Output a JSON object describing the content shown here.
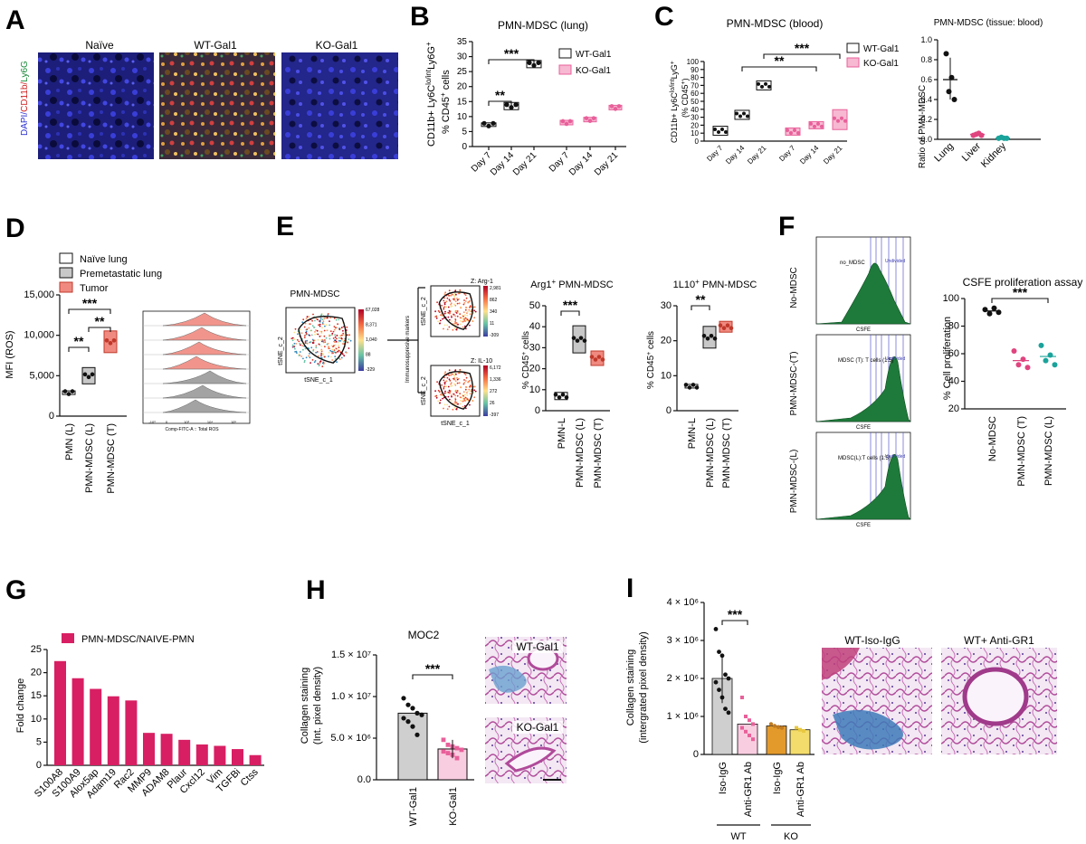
{
  "colors": {
    "wt": "#ffffff",
    "ko": "#e8609a",
    "ko_light": "#f7b8d1",
    "bar_red": "#d81f63",
    "tumor": "#f08a80",
    "premet": "#c8c8c8",
    "gold": "#e39a2b",
    "yellow": "#f3dc6b",
    "green": "#1e7a3a",
    "liver": "#e0447f",
    "kidney": "#1aa39b",
    "micro_blue": "#2a2fd0"
  },
  "panels": {
    "A": {
      "label": "A",
      "cols": [
        "Naïve",
        "WT-Gal1",
        "KO-Gal1"
      ],
      "stain_dapi": "DAPI/",
      "stain_cd11b": "CD11b/",
      "stain_ly6g": "Ly6G"
    },
    "B": {
      "label": "B",
      "title": "PMN-MDSC (lung)",
      "ylabel1": "CD11b+ Ly6C",
      "ylabel1b": "lo/int",
      "ylabel1c": "Ly6G",
      "ylabel1d": "+",
      "ylabel2": "% CD45",
      "ylabel2b": "+",
      "ylabel2c": " cells",
      "legend": [
        "WT-Gal1",
        "KO-Gal1"
      ]
    },
    "C": {
      "label": "C",
      "title": "PMN-MDSC (blood)",
      "ylabel1": "CD11b+ Ly6C",
      "ylabel1b": "lo/int",
      "ylabel1c": "LyG",
      "ylabel1d": "+",
      "ylabel2": "(% CD45",
      "ylabel2b": "+",
      "ylabel2c": ")",
      "legend": [
        "WT-Gal1",
        "KO-Gal1"
      ],
      "title2": "PMN-MDSC (tissue: blood)",
      "ylabel_ratio": "Ratio of PMN-MDSC"
    },
    "D": {
      "label": "D",
      "ylabel": "MFI (ROS)",
      "legend": [
        "Naïve lung",
        "Premetastatic lung",
        "Tumor"
      ],
      "hist_xlabel": "Comp-FITC-A :: Total ROS",
      "hist_ticks": [
        "-10³",
        "0",
        "10³",
        "10⁴",
        "10⁵"
      ]
    },
    "E": {
      "label": "E",
      "tsne_title": "PMN-MDSC",
      "tsne_x": "tSNE_c_1",
      "tsne_y": "tSNE_c_2",
      "arrow_label": "Immunosuppresive markers",
      "z_arg": "Z: Arg-1",
      "z_il": "Z: IL-10",
      "scale_main": [
        "67,028",
        "8,371",
        "1,040",
        "88",
        "-329"
      ],
      "scale_arg": [
        "2,981",
        "862",
        "340",
        "11",
        "-309"
      ],
      "scale_il": [
        "6,172",
        "1,336",
        "272",
        "26",
        "-397"
      ],
      "arg_title": "Arg1",
      "arg_title_sup": "+",
      "arg_title2": " PMN-MDSC",
      "il_title": "1L10",
      "il_title_sup": "+",
      "il_title2": " PMN-MDSC",
      "ylabel": "% CD45",
      "ylabel_sup": "+",
      "ylabel2": " cells"
    },
    "F": {
      "label": "F",
      "rows": [
        "No-MDSC",
        "PMN-MDSC-(T)",
        "PMN-MDSC-(L)"
      ],
      "hist_text": [
        "no_MDSC",
        "MDSC (T): T cells (1:5)",
        "MDSC(L):T cells (1:5)"
      ],
      "undivided": "Undivided",
      "xlabel": "CSFE",
      "prolif_title": "CSFE proliferation assay",
      "prolif_ylabel": "% Cell proliferation",
      "prolif_cats": [
        "No-MDSC",
        "PMN-MDSC (T)",
        "PMN-MDSC (L)"
      ]
    },
    "G": {
      "label": "G",
      "legend": "PMN-MDSC/NAIVE-PMN",
      "ylabel": "Fold change"
    },
    "H": {
      "label": "H",
      "title": "MOC2",
      "ylabel1": "Collagen staining",
      "ylabel2": "(Int. pixel density)",
      "cats": [
        "WT-Gal1",
        "KO-Gal1"
      ],
      "img_wt": "WT-Gal1",
      "img_ko": "KO-Gal1"
    },
    "I": {
      "label": "I",
      "ylabel1": "Collagen staining",
      "ylabel2": "(intergrated pixel density)",
      "cats": [
        "Iso-IgG",
        "Anti-GR1 Ab",
        "Iso-IgG",
        "Anti-GR1 Ab"
      ],
      "groups": [
        "WT",
        "KO"
      ],
      "img1": "WT-Iso-IgG",
      "img2": "WT+ Anti-GR1"
    }
  },
  "chart_data": [
    {
      "panel": "B",
      "type": "scatter",
      "title": "PMN-MDSC (lung)",
      "ylabel": "CD11b+ Ly6Clo/int Ly6G+ % CD45+ cells",
      "ylim": [
        0,
        35
      ],
      "yticks": [
        0,
        5,
        10,
        15,
        20,
        25,
        30,
        35
      ],
      "categories": [
        "Day 7",
        "Day 14",
        "Day 21",
        "Day 7",
        "Day 14",
        "Day 21"
      ],
      "series": [
        {
          "name": "WT-Gal1",
          "values": [
            7.3,
            13.5,
            27.5
          ]
        },
        {
          "name": "KO-Gal1",
          "values": [
            8.0,
            9.0,
            13.0
          ]
        }
      ],
      "significance": [
        {
          "pair": [
            "Day 7",
            "Day 14"
          ],
          "label": "**"
        },
        {
          "pair": [
            "Day 7",
            "Day 21"
          ],
          "label": "***"
        }
      ]
    },
    {
      "panel": "C1",
      "type": "box",
      "title": "PMN-MDSC (blood)",
      "ylim": [
        0,
        100
      ],
      "yticks": [
        0,
        10,
        20,
        30,
        40,
        50,
        60,
        70,
        80,
        90,
        100
      ],
      "categories": [
        "Day 7",
        "Day 14",
        "Day 21",
        "Day 7",
        "Day 14",
        "Day 21"
      ],
      "series": [
        {
          "name": "WT-Gal1",
          "values": [
            13,
            33,
            70
          ]
        },
        {
          "name": "KO-Gal1",
          "values": [
            12,
            20,
            27
          ]
        }
      ],
      "significance": [
        {
          "label": "**"
        },
        {
          "label": "***"
        }
      ]
    },
    {
      "panel": "C2",
      "type": "scatter",
      "title": "PMN-MDSC (tissue: blood)",
      "ylabel": "Ratio of PMN-MDSC",
      "ylim": [
        0,
        1.0
      ],
      "yticks": [
        0.0,
        0.2,
        0.4,
        0.6,
        0.8,
        1.0
      ],
      "categories": [
        "Lung",
        "Liver",
        "Kidney"
      ],
      "values": [
        0.6,
        0.05,
        0.01
      ]
    },
    {
      "panel": "D",
      "type": "box",
      "ylabel": "MFI (ROS)",
      "ylim": [
        0,
        15000
      ],
      "yticks": [
        0,
        5000,
        10000,
        15000
      ],
      "categories": [
        "PMN (L)",
        "PMN-MDSC (L)",
        "PMN-MDSC (T)"
      ],
      "values": [
        2900,
        5000,
        9200
      ],
      "significance": [
        {
          "label": "**"
        },
        {
          "label": "**"
        },
        {
          "label": "***"
        }
      ]
    },
    {
      "panel": "E1",
      "type": "box",
      "title": "Arg1+ PMN-MDSC",
      "ylabel": "% CD45+ cells",
      "ylim": [
        0,
        50
      ],
      "yticks": [
        0,
        10,
        20,
        30,
        40,
        50
      ],
      "categories": [
        "PMN-L",
        "PMN-MDSC (L)",
        "PMN-MDSC (T)"
      ],
      "values": [
        7,
        34,
        25
      ],
      "significance": [
        {
          "label": "***"
        }
      ]
    },
    {
      "panel": "E2",
      "type": "box",
      "title": "1L10+ PMN-MDSC",
      "ylabel": "% CD45+ cells",
      "ylim": [
        0,
        30
      ],
      "yticks": [
        0,
        10,
        20,
        30
      ],
      "categories": [
        "PMN-L",
        "PMN-MDSC (L)",
        "PMN-MDSC (T)"
      ],
      "values": [
        7,
        21,
        24
      ],
      "significance": [
        {
          "label": "**"
        }
      ]
    },
    {
      "panel": "F",
      "type": "scatter",
      "title": "CSFE proliferation assay",
      "ylabel": "% Cell proliferation",
      "ylim": [
        20,
        100
      ],
      "yticks": [
        20,
        40,
        60,
        80,
        100
      ],
      "categories": [
        "No-MDSC",
        "PMN-MDSC (T)",
        "PMN-MDSC (L)"
      ],
      "values": [
        91,
        55,
        58
      ],
      "significance": [
        {
          "label": "***"
        }
      ]
    },
    {
      "panel": "G",
      "type": "bar",
      "ylabel": "Fold change",
      "ylim": [
        0,
        25
      ],
      "yticks": [
        0,
        5,
        10,
        15,
        20,
        25
      ],
      "categories": [
        "S100A8",
        "S100A9",
        "Alox5ap",
        "Adam19",
        "Rac2",
        "MMP9",
        "ADAM8",
        "Plaur",
        "Cxcl12",
        "Vim",
        "TGFBi",
        "Ctss"
      ],
      "values": [
        22.5,
        18.8,
        16.5,
        14.9,
        14.0,
        7.0,
        6.8,
        5.5,
        4.5,
        4.2,
        3.5,
        2.2
      ]
    },
    {
      "panel": "H",
      "type": "bar",
      "title": "MOC2",
      "ylabel": "Collagen staining (Int. pixel density)",
      "ylim": [
        0,
        15000000
      ],
      "yticks": [
        "0.0",
        "5.0 × 10⁶",
        "1.0 × 10⁷",
        "1.5 × 10⁷"
      ],
      "categories": [
        "WT-Gal1",
        "KO-Gal1"
      ],
      "values": [
        8000000,
        3700000
      ],
      "significance": [
        {
          "label": "***"
        }
      ]
    },
    {
      "panel": "I",
      "type": "bar",
      "ylabel": "Collagen staining (intergrated pixel density)",
      "ylim": [
        0,
        4000000
      ],
      "yticks": [
        "0",
        "1 × 10⁶",
        "2 × 10⁶",
        "3 × 10⁶",
        "4 × 10⁶"
      ],
      "categories": [
        "Iso-IgG",
        "Anti-GR1 Ab",
        "Iso-IgG",
        "Anti-GR1 Ab"
      ],
      "values": [
        2000000,
        800000,
        750000,
        650000
      ],
      "significance": [
        {
          "label": "***"
        }
      ]
    }
  ]
}
